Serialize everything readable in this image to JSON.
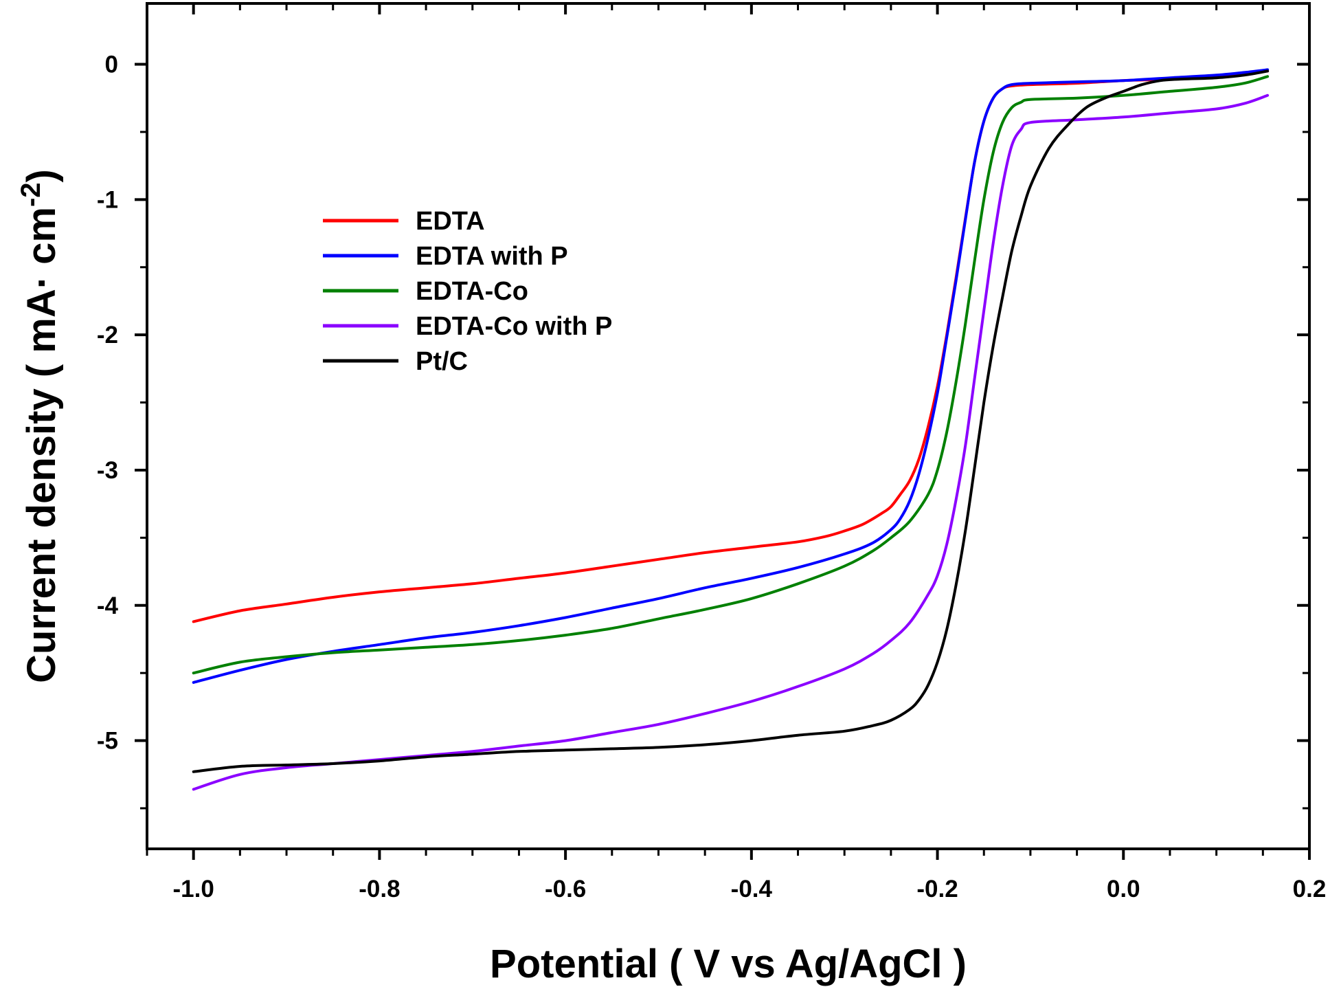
{
  "chart_data": {
    "type": "line",
    "title": "",
    "xlabel": "Potential ( V vs Ag/AgCl )",
    "ylabel_main": "Current density ( mA· cm",
    "ylabel_sup": "-2",
    "ylabel_close": ")",
    "xlim": [
      -1.05,
      0.2
    ],
    "ylim": [
      -5.8,
      0.45
    ],
    "xticks": [
      -1.0,
      -0.8,
      -0.6,
      -0.4,
      -0.2,
      0.0,
      0.2
    ],
    "xtick_labels": [
      "-1.0",
      "-0.8",
      "-0.6",
      "-0.4",
      "-0.2",
      "0.0",
      "0.2"
    ],
    "yticks": [
      0,
      -1,
      -2,
      -3,
      -4,
      -5
    ],
    "ytick_labels": [
      "0",
      "-1",
      "-2",
      "-3",
      "-4",
      "-5"
    ],
    "grid": false,
    "legend_position": "upper-left",
    "series": [
      {
        "name": "EDTA",
        "color": "#ff0000",
        "points": [
          [
            -1.0,
            -4.12
          ],
          [
            -0.95,
            -4.04
          ],
          [
            -0.9,
            -3.99
          ],
          [
            -0.85,
            -3.94
          ],
          [
            -0.8,
            -3.9
          ],
          [
            -0.75,
            -3.87
          ],
          [
            -0.7,
            -3.84
          ],
          [
            -0.65,
            -3.8
          ],
          [
            -0.6,
            -3.76
          ],
          [
            -0.55,
            -3.71
          ],
          [
            -0.5,
            -3.66
          ],
          [
            -0.45,
            -3.61
          ],
          [
            -0.4,
            -3.57
          ],
          [
            -0.35,
            -3.53
          ],
          [
            -0.32,
            -3.49
          ],
          [
            -0.3,
            -3.45
          ],
          [
            -0.28,
            -3.4
          ],
          [
            -0.26,
            -3.32
          ],
          [
            -0.25,
            -3.27
          ],
          [
            -0.24,
            -3.18
          ],
          [
            -0.23,
            -3.08
          ],
          [
            -0.22,
            -2.92
          ],
          [
            -0.21,
            -2.68
          ],
          [
            -0.2,
            -2.38
          ],
          [
            -0.19,
            -2.0
          ],
          [
            -0.18,
            -1.58
          ],
          [
            -0.17,
            -1.14
          ],
          [
            -0.16,
            -0.72
          ],
          [
            -0.15,
            -0.42
          ],
          [
            -0.14,
            -0.25
          ],
          [
            -0.13,
            -0.18
          ],
          [
            -0.12,
            -0.16
          ],
          [
            -0.1,
            -0.15
          ],
          [
            -0.05,
            -0.14
          ],
          [
            0.0,
            -0.12
          ],
          [
            0.05,
            -0.11
          ],
          [
            0.1,
            -0.09
          ],
          [
            0.13,
            -0.07
          ],
          [
            0.155,
            -0.05
          ]
        ]
      },
      {
        "name": "EDTA with P",
        "color": "#0000ff",
        "points": [
          [
            -1.0,
            -4.57
          ],
          [
            -0.95,
            -4.48
          ],
          [
            -0.9,
            -4.4
          ],
          [
            -0.85,
            -4.34
          ],
          [
            -0.8,
            -4.29
          ],
          [
            -0.75,
            -4.24
          ],
          [
            -0.7,
            -4.2
          ],
          [
            -0.65,
            -4.15
          ],
          [
            -0.6,
            -4.09
          ],
          [
            -0.55,
            -4.02
          ],
          [
            -0.5,
            -3.95
          ],
          [
            -0.45,
            -3.87
          ],
          [
            -0.4,
            -3.8
          ],
          [
            -0.35,
            -3.72
          ],
          [
            -0.3,
            -3.62
          ],
          [
            -0.27,
            -3.54
          ],
          [
            -0.25,
            -3.44
          ],
          [
            -0.24,
            -3.36
          ],
          [
            -0.23,
            -3.23
          ],
          [
            -0.22,
            -3.03
          ],
          [
            -0.21,
            -2.76
          ],
          [
            -0.2,
            -2.43
          ],
          [
            -0.19,
            -2.02
          ],
          [
            -0.18,
            -1.6
          ],
          [
            -0.17,
            -1.15
          ],
          [
            -0.16,
            -0.72
          ],
          [
            -0.15,
            -0.42
          ],
          [
            -0.14,
            -0.25
          ],
          [
            -0.13,
            -0.18
          ],
          [
            -0.12,
            -0.15
          ],
          [
            -0.1,
            -0.14
          ],
          [
            -0.05,
            -0.13
          ],
          [
            0.0,
            -0.12
          ],
          [
            0.05,
            -0.1
          ],
          [
            0.1,
            -0.08
          ],
          [
            0.13,
            -0.06
          ],
          [
            0.155,
            -0.04
          ]
        ]
      },
      {
        "name": "EDTA-Co",
        "color": "#008000",
        "points": [
          [
            -1.0,
            -4.5
          ],
          [
            -0.95,
            -4.42
          ],
          [
            -0.9,
            -4.38
          ],
          [
            -0.85,
            -4.35
          ],
          [
            -0.8,
            -4.33
          ],
          [
            -0.75,
            -4.31
          ],
          [
            -0.7,
            -4.29
          ],
          [
            -0.65,
            -4.26
          ],
          [
            -0.6,
            -4.22
          ],
          [
            -0.55,
            -4.17
          ],
          [
            -0.5,
            -4.1
          ],
          [
            -0.45,
            -4.03
          ],
          [
            -0.4,
            -3.95
          ],
          [
            -0.35,
            -3.84
          ],
          [
            -0.3,
            -3.71
          ],
          [
            -0.27,
            -3.6
          ],
          [
            -0.25,
            -3.5
          ],
          [
            -0.23,
            -3.38
          ],
          [
            -0.21,
            -3.18
          ],
          [
            -0.2,
            -3.0
          ],
          [
            -0.19,
            -2.72
          ],
          [
            -0.18,
            -2.35
          ],
          [
            -0.17,
            -1.92
          ],
          [
            -0.16,
            -1.45
          ],
          [
            -0.15,
            -1.0
          ],
          [
            -0.14,
            -0.65
          ],
          [
            -0.13,
            -0.43
          ],
          [
            -0.12,
            -0.32
          ],
          [
            -0.11,
            -0.28
          ],
          [
            -0.1,
            -0.26
          ],
          [
            -0.05,
            -0.25
          ],
          [
            0.0,
            -0.23
          ],
          [
            0.05,
            -0.2
          ],
          [
            0.1,
            -0.17
          ],
          [
            0.13,
            -0.14
          ],
          [
            0.155,
            -0.09
          ]
        ]
      },
      {
        "name": "EDTA-Co with P",
        "color": "#8b00ff",
        "points": [
          [
            -1.0,
            -5.36
          ],
          [
            -0.95,
            -5.25
          ],
          [
            -0.9,
            -5.2
          ],
          [
            -0.85,
            -5.17
          ],
          [
            -0.8,
            -5.14
          ],
          [
            -0.75,
            -5.11
          ],
          [
            -0.7,
            -5.08
          ],
          [
            -0.65,
            -5.04
          ],
          [
            -0.6,
            -5.0
          ],
          [
            -0.55,
            -4.94
          ],
          [
            -0.5,
            -4.88
          ],
          [
            -0.45,
            -4.8
          ],
          [
            -0.4,
            -4.71
          ],
          [
            -0.35,
            -4.6
          ],
          [
            -0.3,
            -4.47
          ],
          [
            -0.27,
            -4.36
          ],
          [
            -0.25,
            -4.26
          ],
          [
            -0.23,
            -4.13
          ],
          [
            -0.21,
            -3.92
          ],
          [
            -0.2,
            -3.78
          ],
          [
            -0.19,
            -3.55
          ],
          [
            -0.18,
            -3.22
          ],
          [
            -0.17,
            -2.82
          ],
          [
            -0.16,
            -2.32
          ],
          [
            -0.15,
            -1.82
          ],
          [
            -0.14,
            -1.32
          ],
          [
            -0.13,
            -0.9
          ],
          [
            -0.12,
            -0.6
          ],
          [
            -0.11,
            -0.48
          ],
          [
            -0.1,
            -0.43
          ],
          [
            -0.05,
            -0.41
          ],
          [
            0.0,
            -0.39
          ],
          [
            0.05,
            -0.36
          ],
          [
            0.1,
            -0.33
          ],
          [
            0.13,
            -0.29
          ],
          [
            0.155,
            -0.23
          ]
        ]
      },
      {
        "name": "Pt/C",
        "color": "#000000",
        "points": [
          [
            -1.0,
            -5.23
          ],
          [
            -0.95,
            -5.19
          ],
          [
            -0.9,
            -5.18
          ],
          [
            -0.85,
            -5.17
          ],
          [
            -0.8,
            -5.15
          ],
          [
            -0.75,
            -5.12
          ],
          [
            -0.7,
            -5.1
          ],
          [
            -0.65,
            -5.08
          ],
          [
            -0.6,
            -5.07
          ],
          [
            -0.55,
            -5.06
          ],
          [
            -0.5,
            -5.05
          ],
          [
            -0.45,
            -5.03
          ],
          [
            -0.4,
            -5.0
          ],
          [
            -0.35,
            -4.96
          ],
          [
            -0.3,
            -4.93
          ],
          [
            -0.27,
            -4.89
          ],
          [
            -0.25,
            -4.85
          ],
          [
            -0.23,
            -4.77
          ],
          [
            -0.22,
            -4.7
          ],
          [
            -0.21,
            -4.59
          ],
          [
            -0.2,
            -4.42
          ],
          [
            -0.19,
            -4.18
          ],
          [
            -0.18,
            -3.85
          ],
          [
            -0.17,
            -3.45
          ],
          [
            -0.16,
            -2.98
          ],
          [
            -0.15,
            -2.5
          ],
          [
            -0.14,
            -2.08
          ],
          [
            -0.13,
            -1.72
          ],
          [
            -0.12,
            -1.38
          ],
          [
            -0.11,
            -1.12
          ],
          [
            -0.1,
            -0.9
          ],
          [
            -0.08,
            -0.62
          ],
          [
            -0.06,
            -0.45
          ],
          [
            -0.04,
            -0.32
          ],
          [
            -0.02,
            -0.25
          ],
          [
            0.0,
            -0.2
          ],
          [
            0.02,
            -0.15
          ],
          [
            0.04,
            -0.12
          ],
          [
            0.06,
            -0.11
          ],
          [
            0.1,
            -0.1
          ],
          [
            0.13,
            -0.08
          ],
          [
            0.155,
            -0.05
          ]
        ]
      }
    ]
  }
}
